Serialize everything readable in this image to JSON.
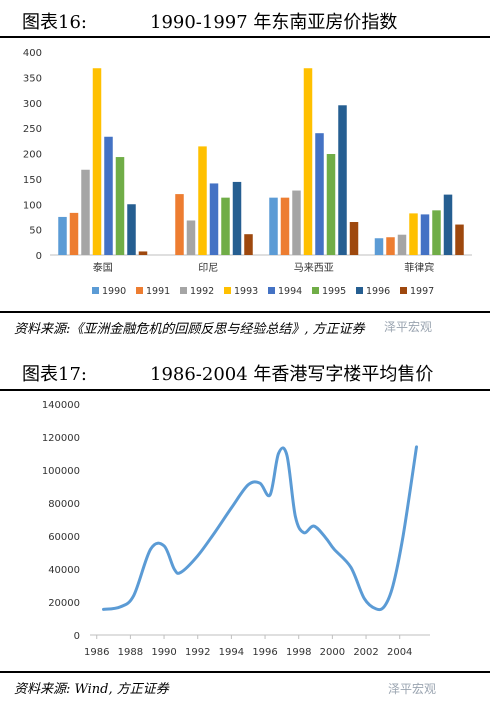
{
  "figure16": {
    "label": "图表16:",
    "title": "1990-1997 年东南亚房价指数",
    "source": "资料来源:《亚洲金融危机的回顾反思与经验总结》, 方正证券"
  },
  "figure17": {
    "label": "图表17:",
    "title": "1986-2004 年香港写字楼平均售价",
    "source": "资料来源: Wind, 方正证券"
  },
  "watermark": "泽平宏观",
  "chart_data": [
    {
      "type": "bar",
      "categories": [
        "泰国",
        "印尼",
        "马来西亚",
        "菲律宾"
      ],
      "series": [
        {
          "name": "1990",
          "color": "#5b9bd5",
          "values": [
            75,
            null,
            113,
            33
          ]
        },
        {
          "name": "1991",
          "color": "#ed7d31",
          "values": [
            83,
            120,
            113,
            35
          ]
        },
        {
          "name": "1992",
          "color": "#a5a5a5",
          "values": [
            168,
            68,
            127,
            40
          ]
        },
        {
          "name": "1993",
          "color": "#ffc000",
          "values": [
            368,
            214,
            368,
            82
          ]
        },
        {
          "name": "1994",
          "color": "#4472c4",
          "values": [
            233,
            141,
            240,
            80
          ]
        },
        {
          "name": "1995",
          "color": "#70ad47",
          "values": [
            193,
            113,
            199,
            88
          ]
        },
        {
          "name": "1996",
          "color": "#255e91",
          "values": [
            100,
            144,
            295,
            119
          ]
        },
        {
          "name": "1997",
          "color": "#9e480e",
          "values": [
            7,
            41,
            65,
            60
          ]
        }
      ],
      "ylim": [
        0,
        400
      ],
      "yticks": [
        0,
        50,
        100,
        150,
        200,
        250,
        300,
        350,
        400
      ],
      "legend": "bottom"
    },
    {
      "type": "line",
      "color": "#5b9bd5",
      "x": [
        1986.4,
        1987.4,
        1988.2,
        1989.2,
        1990.0,
        1990.6,
        1991.0,
        1992.0,
        1993.0,
        1994.0,
        1995.0,
        1995.7,
        1996.3,
        1996.8,
        1997.3,
        1997.8,
        1998.3,
        1998.9,
        1999.6,
        2000.1,
        2001.1,
        2001.9,
        2002.6,
        2003.1,
        2003.6,
        2004.2,
        2005.0
      ],
      "y": [
        15500,
        17000,
        24000,
        52000,
        54000,
        40000,
        38000,
        48000,
        62000,
        77000,
        91000,
        92000,
        85000,
        110000,
        109000,
        72000,
        62000,
        66000,
        59000,
        52000,
        41000,
        22000,
        15800,
        17500,
        30000,
        60000,
        114000
      ],
      "xticks": [
        1986,
        1988,
        1990,
        1992,
        1994,
        1996,
        1998,
        2000,
        2002,
        2004
      ],
      "yticks": [
        0,
        20000,
        40000,
        60000,
        80000,
        100000,
        120000,
        140000
      ],
      "xlim": [
        1985.6,
        2005.8
      ],
      "ylim": [
        0,
        140000
      ]
    }
  ]
}
